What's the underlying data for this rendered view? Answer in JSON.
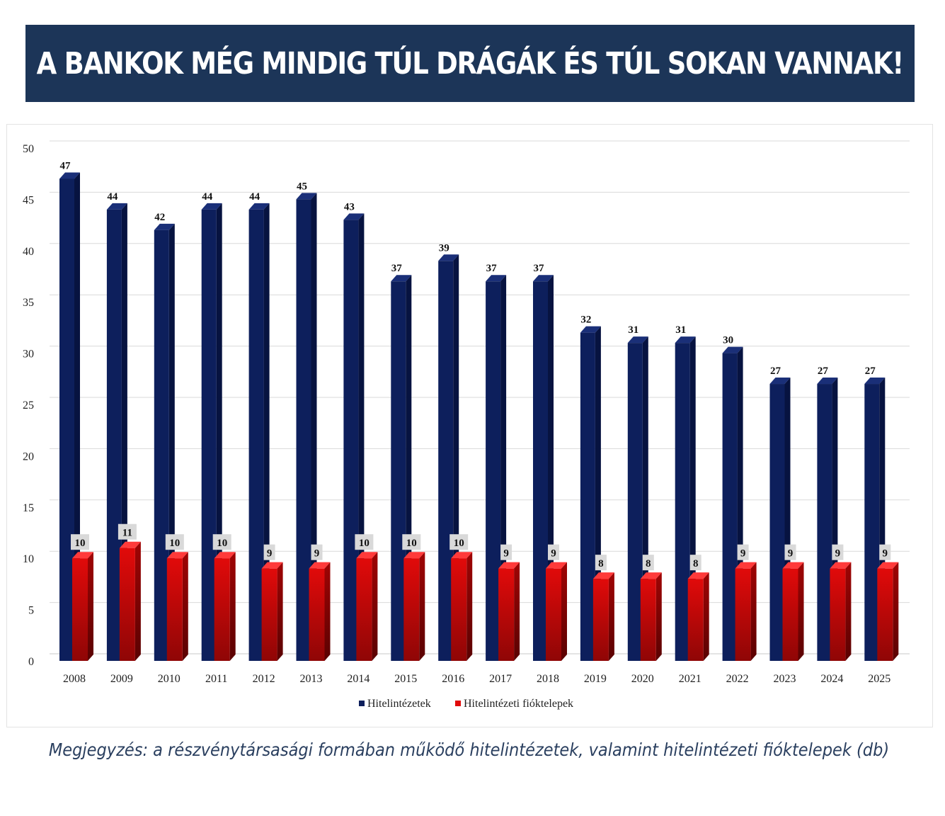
{
  "title": "A BANKOK MÉG MINDIG TÚL DRÁGÁK ÉS TÚL SOKAN VANNAK!",
  "note": "Megjegyzés: a részvénytársasági formában működő hitelintézetek, valamint hitelintézeti fióktelepek (db)",
  "colors": {
    "banner": "#1c3558",
    "series1": "#0d1f5c",
    "series2": "#e10a0a"
  },
  "chart_data": {
    "type": "bar",
    "categories": [
      "2008",
      "2009",
      "2010",
      "2011",
      "2012",
      "2013",
      "2014",
      "2015",
      "2016",
      "2017",
      "2018",
      "2019",
      "2020",
      "2021",
      "2022",
      "2023",
      "2024",
      "2025"
    ],
    "series": [
      {
        "name": "Hitelintézetek",
        "values": [
          47,
          44,
          42,
          44,
          44,
          45,
          43,
          37,
          39,
          37,
          37,
          32,
          31,
          31,
          30,
          27,
          27,
          27
        ]
      },
      {
        "name": "Hitelintézeti fióktelepek",
        "values": [
          10,
          11,
          10,
          10,
          9,
          9,
          10,
          10,
          10,
          9,
          9,
          8,
          8,
          8,
          9,
          9,
          9,
          9
        ]
      }
    ],
    "ylim": [
      0,
      50
    ],
    "yticks": [
      0,
      5,
      10,
      15,
      20,
      25,
      30,
      35,
      40,
      45,
      50
    ],
    "grid": true,
    "legend": "bottom"
  }
}
